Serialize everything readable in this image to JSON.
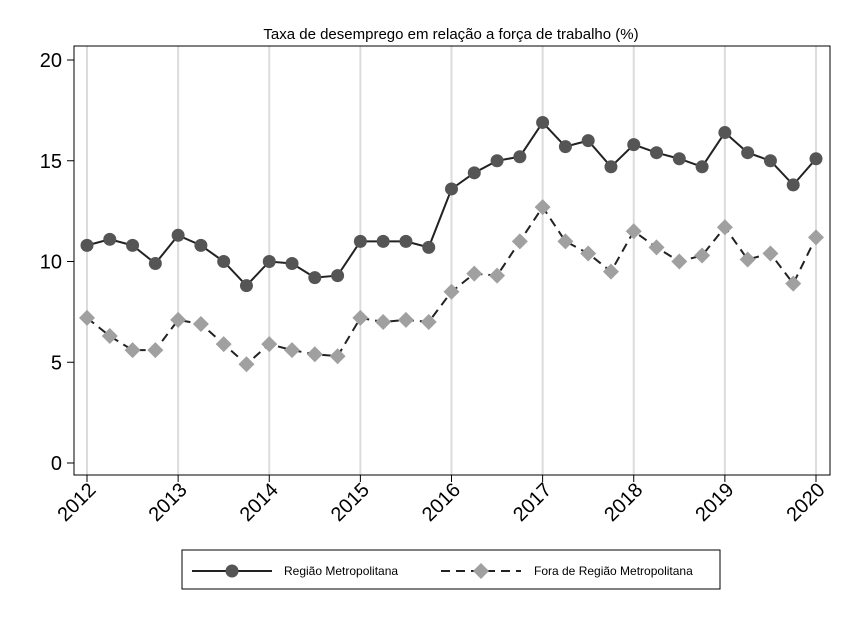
{
  "chart_data": {
    "type": "line",
    "title": "Taxa de desemprego em relação a força de trabalho (%)",
    "xlabel": "",
    "ylabel": "",
    "xlim": [
      2012,
      2020
    ],
    "ylim": [
      0,
      20
    ],
    "x_ticks": [
      "2012",
      "2013",
      "2014",
      "2015",
      "2016",
      "2017",
      "2018",
      "2019",
      "2020"
    ],
    "y_ticks": [
      "0",
      "5",
      "10",
      "15",
      "20"
    ],
    "grid": "vertical",
    "legend_position": "bottom",
    "x": [
      2012.0,
      2012.25,
      2012.5,
      2012.75,
      2013.0,
      2013.25,
      2013.5,
      2013.75,
      2014.0,
      2014.25,
      2014.5,
      2014.75,
      2015.0,
      2015.25,
      2015.5,
      2015.75,
      2016.0,
      2016.25,
      2016.5,
      2016.75,
      2017.0,
      2017.25,
      2017.5,
      2017.75,
      2018.0,
      2018.25,
      2018.5,
      2018.75,
      2019.0,
      2019.25,
      2019.5,
      2019.75,
      2020.0
    ],
    "series": [
      {
        "name": "Região Metropolitana",
        "color": "#555555",
        "marker": "circle",
        "line_style": "solid",
        "values": [
          10.8,
          11.1,
          10.8,
          9.9,
          11.3,
          10.8,
          10.0,
          8.8,
          10.0,
          9.9,
          9.2,
          9.3,
          11.0,
          11.0,
          11.0,
          10.7,
          13.6,
          14.4,
          15.0,
          15.2,
          16.9,
          15.7,
          16.0,
          14.7,
          15.8,
          15.4,
          15.1,
          14.7,
          16.4,
          15.4,
          15.0,
          13.8,
          15.1
        ]
      },
      {
        "name": "Fora de Região Metropolitana",
        "color": "#a0a0a0",
        "marker": "diamond",
        "line_style": "dashed",
        "values": [
          7.2,
          6.3,
          5.6,
          5.6,
          7.1,
          6.9,
          5.9,
          4.9,
          5.9,
          5.6,
          5.4,
          5.3,
          7.2,
          7.0,
          7.1,
          7.0,
          8.5,
          9.4,
          9.3,
          11.0,
          12.7,
          11.0,
          10.4,
          9.5,
          11.5,
          10.7,
          10.0,
          10.3,
          11.7,
          10.1,
          10.4,
          8.9,
          11.2
        ]
      }
    ]
  }
}
